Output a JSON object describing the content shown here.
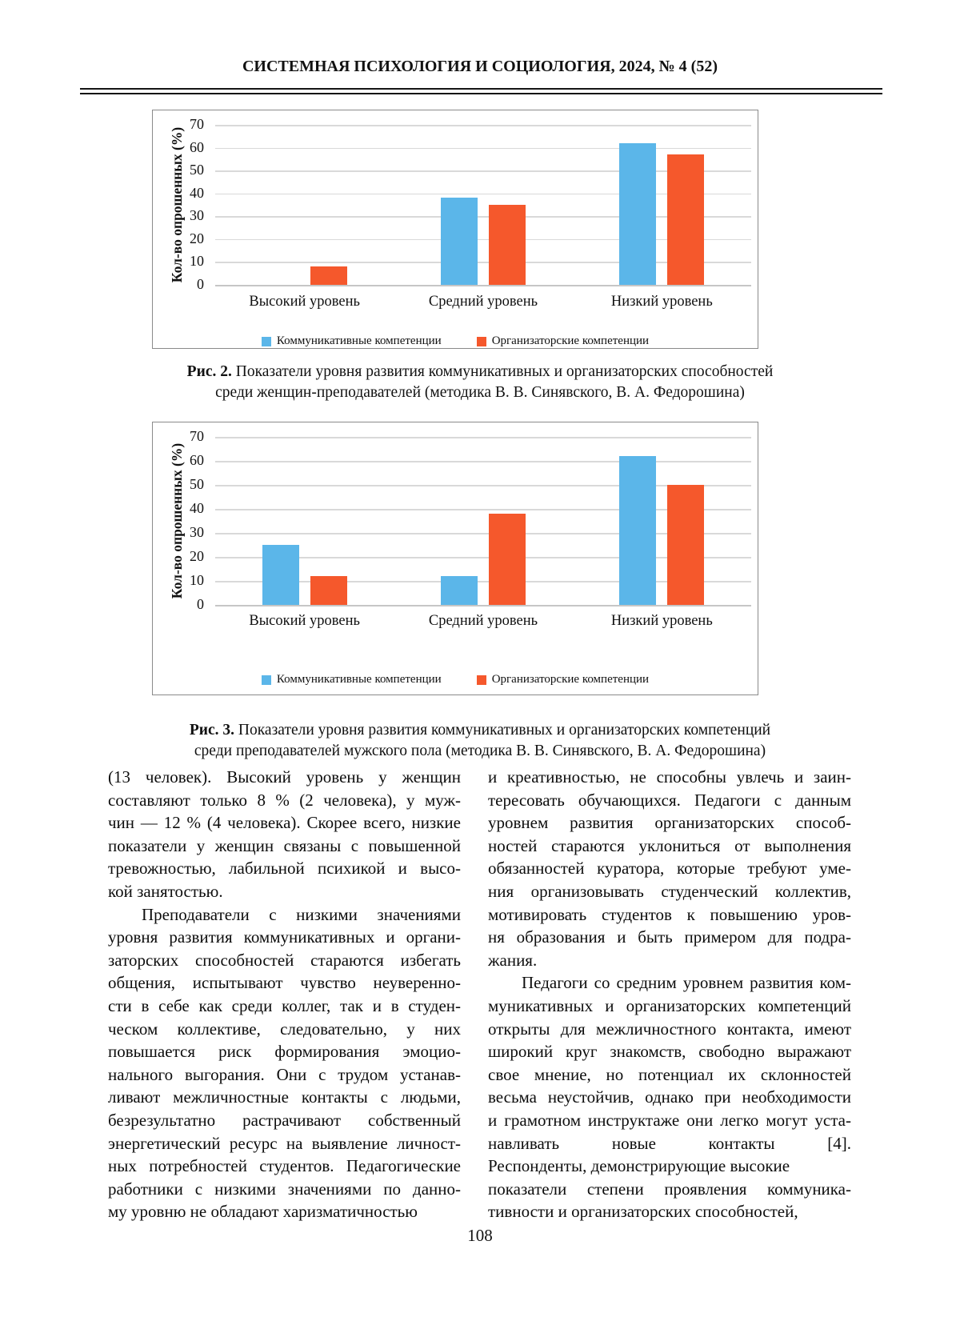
{
  "page": {
    "header": "СИСТЕМНАЯ ПСИХОЛОГИЯ И СОЦИОЛОГИЯ, 2024, № 4 (52)",
    "page_number": "108"
  },
  "figure2": {
    "label": "Рис. 2.",
    "line1": " Показатели уровня развития коммуникативных и организаторских способностей",
    "line2": "среди женщин-преподавателей (методика В. В. Синявского, В. А. Федорошина)"
  },
  "figure3": {
    "label": "Рис. 3.",
    "line1": " Показатели уровня развития коммуникативных и организаторских компетенций",
    "line2": "среди преподавателей мужского пола (методика В. В. Синявского, В. А. Федорошина)"
  },
  "chart_data": [
    {
      "type": "bar",
      "title": "",
      "categories": [
        "Высокий уровень",
        "Средний уровень",
        "Низкий уровень"
      ],
      "series": [
        {
          "name": "Коммуникативные компетенции",
          "color": "#5BB6E9",
          "values": [
            0,
            38,
            62
          ]
        },
        {
          "name": "Организаторские компетенции",
          "color": "#F5582C",
          "values": [
            8,
            35,
            57
          ]
        }
      ],
      "xlabel": "",
      "ylabel": "Кол-во опрошенных  (%)",
      "ylim": [
        0,
        70
      ],
      "yticks": [
        0,
        10,
        20,
        30,
        40,
        50,
        60,
        70
      ],
      "grid": true,
      "legend_position": "bottom"
    },
    {
      "type": "bar",
      "title": "",
      "categories": [
        "Высокий уровень",
        "Средний уровень",
        "Низкий уровень"
      ],
      "series": [
        {
          "name": "Коммуникативные компетенции",
          "color": "#5BB6E9",
          "values": [
            25,
            12,
            62
          ]
        },
        {
          "name": "Организаторские компетенции",
          "color": "#F5582C",
          "values": [
            12,
            38,
            50
          ]
        }
      ],
      "xlabel": "",
      "ylabel": "Кол-во опрошенных (%)",
      "ylim": [
        0,
        70
      ],
      "yticks": [
        0,
        10,
        20,
        30,
        40,
        50,
        60,
        70
      ],
      "grid": true,
      "legend_position": "bottom"
    }
  ],
  "columns": {
    "left": [
      {
        "indent": false,
        "lines": [
          "(13 человек). Высокий уровень у женщин",
          "составляют только 8 % (2 человека), у муж-",
          "чин — 12 % (4 человека). Скорее всего, низкие",
          "показатели у женщин связаны с повышенной",
          "тревожностью, лабильной психикой и высо-",
          "кой занятостью."
        ]
      },
      {
        "indent": true,
        "lines": [
          "Преподаватели с низкими значениями",
          "уровня развития коммуникативных и органи-",
          "заторских способностей стараются избегать",
          "общения, испытывают чувство неуверенно-",
          "сти в себе как среди коллег, так и в студен-",
          "ческом коллективе, следовательно, у них",
          "повышается риск формирования эмоцио-",
          "нального выгорания. Они с трудом устанав-",
          "ливают межличностные контакты с людьми,",
          "безрезультатно растрачивают собственный",
          "энергетический ресурс на выявление личност-",
          "ных потребностей студентов. Педагогические",
          "работники с низкими значениями по данно-",
          "му уровню не обладают харизматичностью"
        ]
      }
    ],
    "right": [
      {
        "indent": false,
        "lines": [
          "и креативностью, не способны увлечь и заин-",
          "тересовать обучающихся. Педагоги с данным",
          "уровнем развития организаторских способ-",
          "ностей стараются уклониться от выполнения",
          "обязанностей куратора, которые требуют уме-",
          "ния организовывать студенческий коллектив,",
          "мотивировать студентов к повышению уров-",
          "ня образования и быть примером для подра-",
          "жания."
        ]
      },
      {
        "indent": true,
        "lines": [
          "Педагоги со средним уровнем развития ком-",
          "муникативных и организаторских компетенций",
          "открыты для межличностного контакта, имеют",
          "широкий круг знакомств, свободно выражают",
          "свое мнение, но потенциал их склонностей",
          "весьма неустойчив, однако при необходимости",
          "и грамотном инструктаже они легко могут уста-",
          "навливать новые контакты [4].",
          "Респонденты, демонстрирующие высокие"
        ]
      },
      {
        "indent": false,
        "lines": [
          "показатели степени проявления коммуника-",
          "тивности и организаторских способностей,"
        ]
      }
    ]
  }
}
